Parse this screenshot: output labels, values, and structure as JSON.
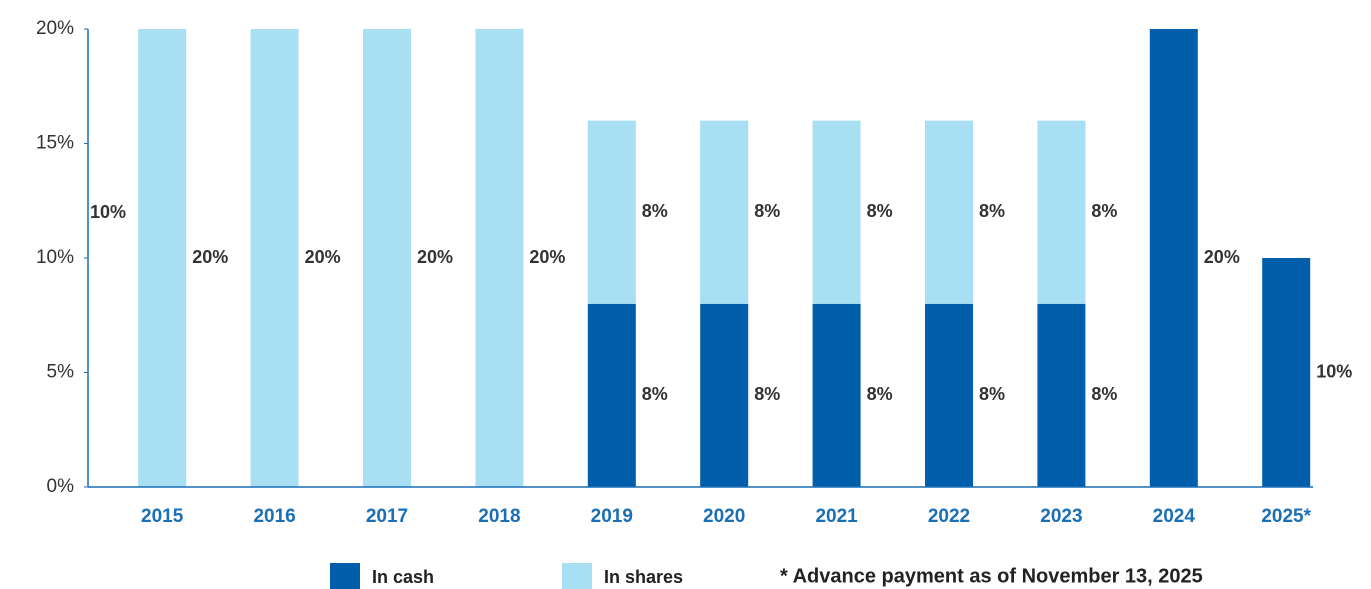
{
  "chart_data": {
    "type": "stacked_bar",
    "categories": [
      "2015",
      "2016",
      "2017",
      "2018",
      "2019",
      "2020",
      "2021",
      "2022",
      "2023",
      "2024",
      "2025*"
    ],
    "series": [
      {
        "name": "In cash",
        "color": "#005eaa",
        "values": [
          0,
          0,
          0,
          0,
          8,
          8,
          8,
          8,
          8,
          20,
          10
        ],
        "value_labels": [
          null,
          null,
          null,
          null,
          "8%",
          "8%",
          "8%",
          "8%",
          "8%",
          "20%",
          "10%"
        ]
      },
      {
        "name": "In shares",
        "color": "#a8dff2",
        "values": [
          20,
          20,
          20,
          20,
          8,
          8,
          8,
          8,
          8,
          0,
          0
        ],
        "value_labels": [
          "20%",
          "20%",
          "20%",
          "20%",
          "8%",
          "8%",
          "8%",
          "8%",
          "8%",
          null,
          null
        ]
      }
    ],
    "ylim": [
      0,
      20
    ],
    "yticks": [
      {
        "value": 0,
        "label": "0%"
      },
      {
        "value": 5,
        "label": "5%"
      },
      {
        "value": 10,
        "label": "10%"
      },
      {
        "value": 15,
        "label": "15%"
      },
      {
        "value": 20,
        "label": "20%"
      }
    ],
    "annotation": "10%",
    "footnote": "* Advance payment as of November 13, 2025",
    "legend": "bottom"
  }
}
